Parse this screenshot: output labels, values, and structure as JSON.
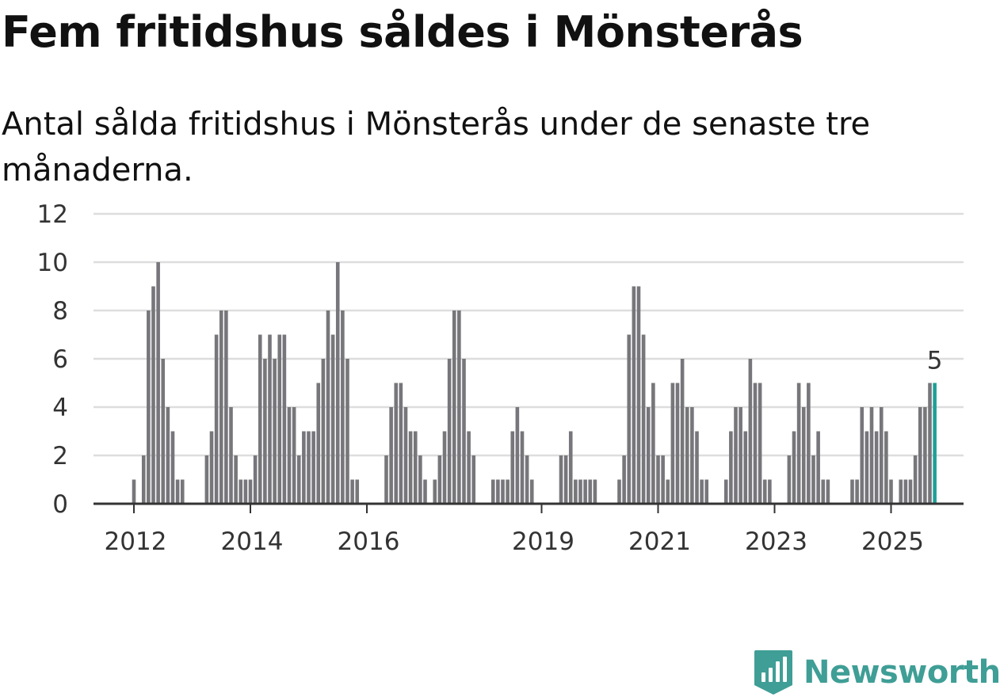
{
  "title": "Fem fritidshus såldes i Mönsterås",
  "subtitle": "Antal sålda fritidshus i Mönsterås under de senaste tre månaderna.",
  "brand": {
    "name": "Newsworthy",
    "color": "#3f9e96",
    "icon": "newsworthy-logo-icon"
  },
  "colors": {
    "bar": "#77767b",
    "highlight": "#1f9f97",
    "grid": "#dddddd",
    "axis": "#333333"
  },
  "chart_data": {
    "type": "bar",
    "title": "Fem fritidshus såldes i Mönsterås",
    "subtitle": "Antal sålda fritidshus i Mönsterås under de senaste tre månaderna.",
    "xlabel": "",
    "ylabel": "",
    "ylim": [
      0,
      12
    ],
    "yticks": [
      0,
      2,
      4,
      6,
      8,
      10,
      12
    ],
    "xticks": [
      "2012",
      "2014",
      "2016",
      "2019",
      "2021",
      "2023",
      "2025"
    ],
    "grid": true,
    "start": "2011-10",
    "values": [
      0,
      0,
      0,
      1,
      0,
      2,
      8,
      9,
      10,
      6,
      4,
      3,
      1,
      1,
      0,
      0,
      0,
      0,
      2,
      3,
      7,
      8,
      8,
      4,
      2,
      1,
      1,
      1,
      2,
      7,
      6,
      7,
      6,
      7,
      7,
      4,
      4,
      2,
      3,
      3,
      3,
      5,
      6,
      8,
      7,
      10,
      8,
      6,
      1,
      1,
      0,
      0,
      0,
      0,
      0,
      2,
      4,
      5,
      5,
      4,
      3,
      3,
      2,
      1,
      0,
      1,
      2,
      3,
      6,
      8,
      8,
      6,
      3,
      2,
      0,
      0,
      0,
      1,
      1,
      1,
      1,
      3,
      4,
      3,
      2,
      1,
      0,
      0,
      0,
      0,
      0,
      2,
      2,
      3,
      1,
      1,
      1,
      1,
      1,
      0,
      0,
      0,
      0,
      1,
      2,
      7,
      9,
      9,
      7,
      4,
      5,
      2,
      2,
      1,
      5,
      5,
      6,
      4,
      4,
      3,
      1,
      1,
      0,
      0,
      0,
      1,
      3,
      4,
      4,
      3,
      6,
      5,
      5,
      1,
      1,
      0,
      0,
      0,
      2,
      3,
      5,
      4,
      5,
      2,
      3,
      1,
      1,
      0,
      0,
      0,
      0,
      1,
      1,
      4,
      3,
      4,
      3,
      4,
      3,
      1,
      0,
      1,
      1,
      1,
      2,
      4,
      4,
      5,
      5
    ],
    "highlight": {
      "value": 5,
      "label": "5",
      "color": "#1f9f97"
    }
  }
}
